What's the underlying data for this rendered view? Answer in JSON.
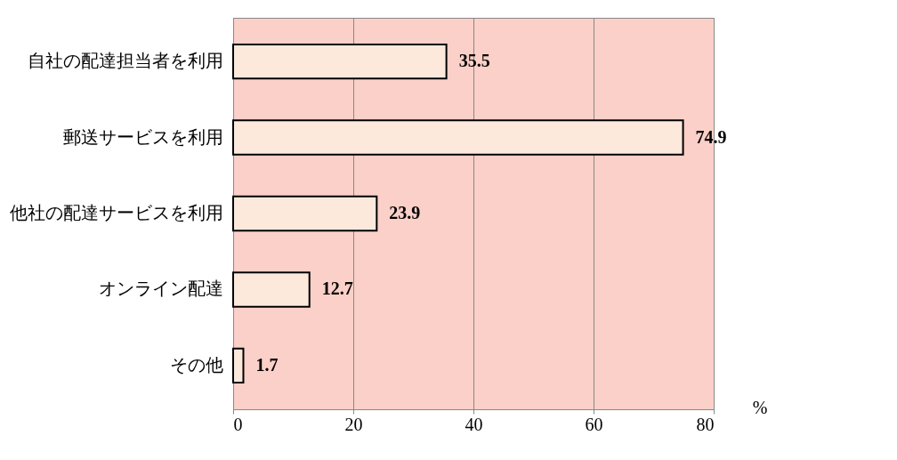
{
  "chart_data": {
    "type": "bar",
    "orientation": "horizontal",
    "categories": [
      "自社の配達担当者を利用",
      "郵送サービスを利用",
      "他社の配達サービスを利用",
      "オンライン配達",
      "その他"
    ],
    "values": [
      35.5,
      74.9,
      23.9,
      12.7,
      1.7
    ],
    "color": "#fde9dc",
    "xlabel": "%",
    "xlim": [
      0,
      80
    ],
    "xticks": [
      0,
      20,
      40,
      60,
      80
    ],
    "grid": "x",
    "data_labels": true
  }
}
